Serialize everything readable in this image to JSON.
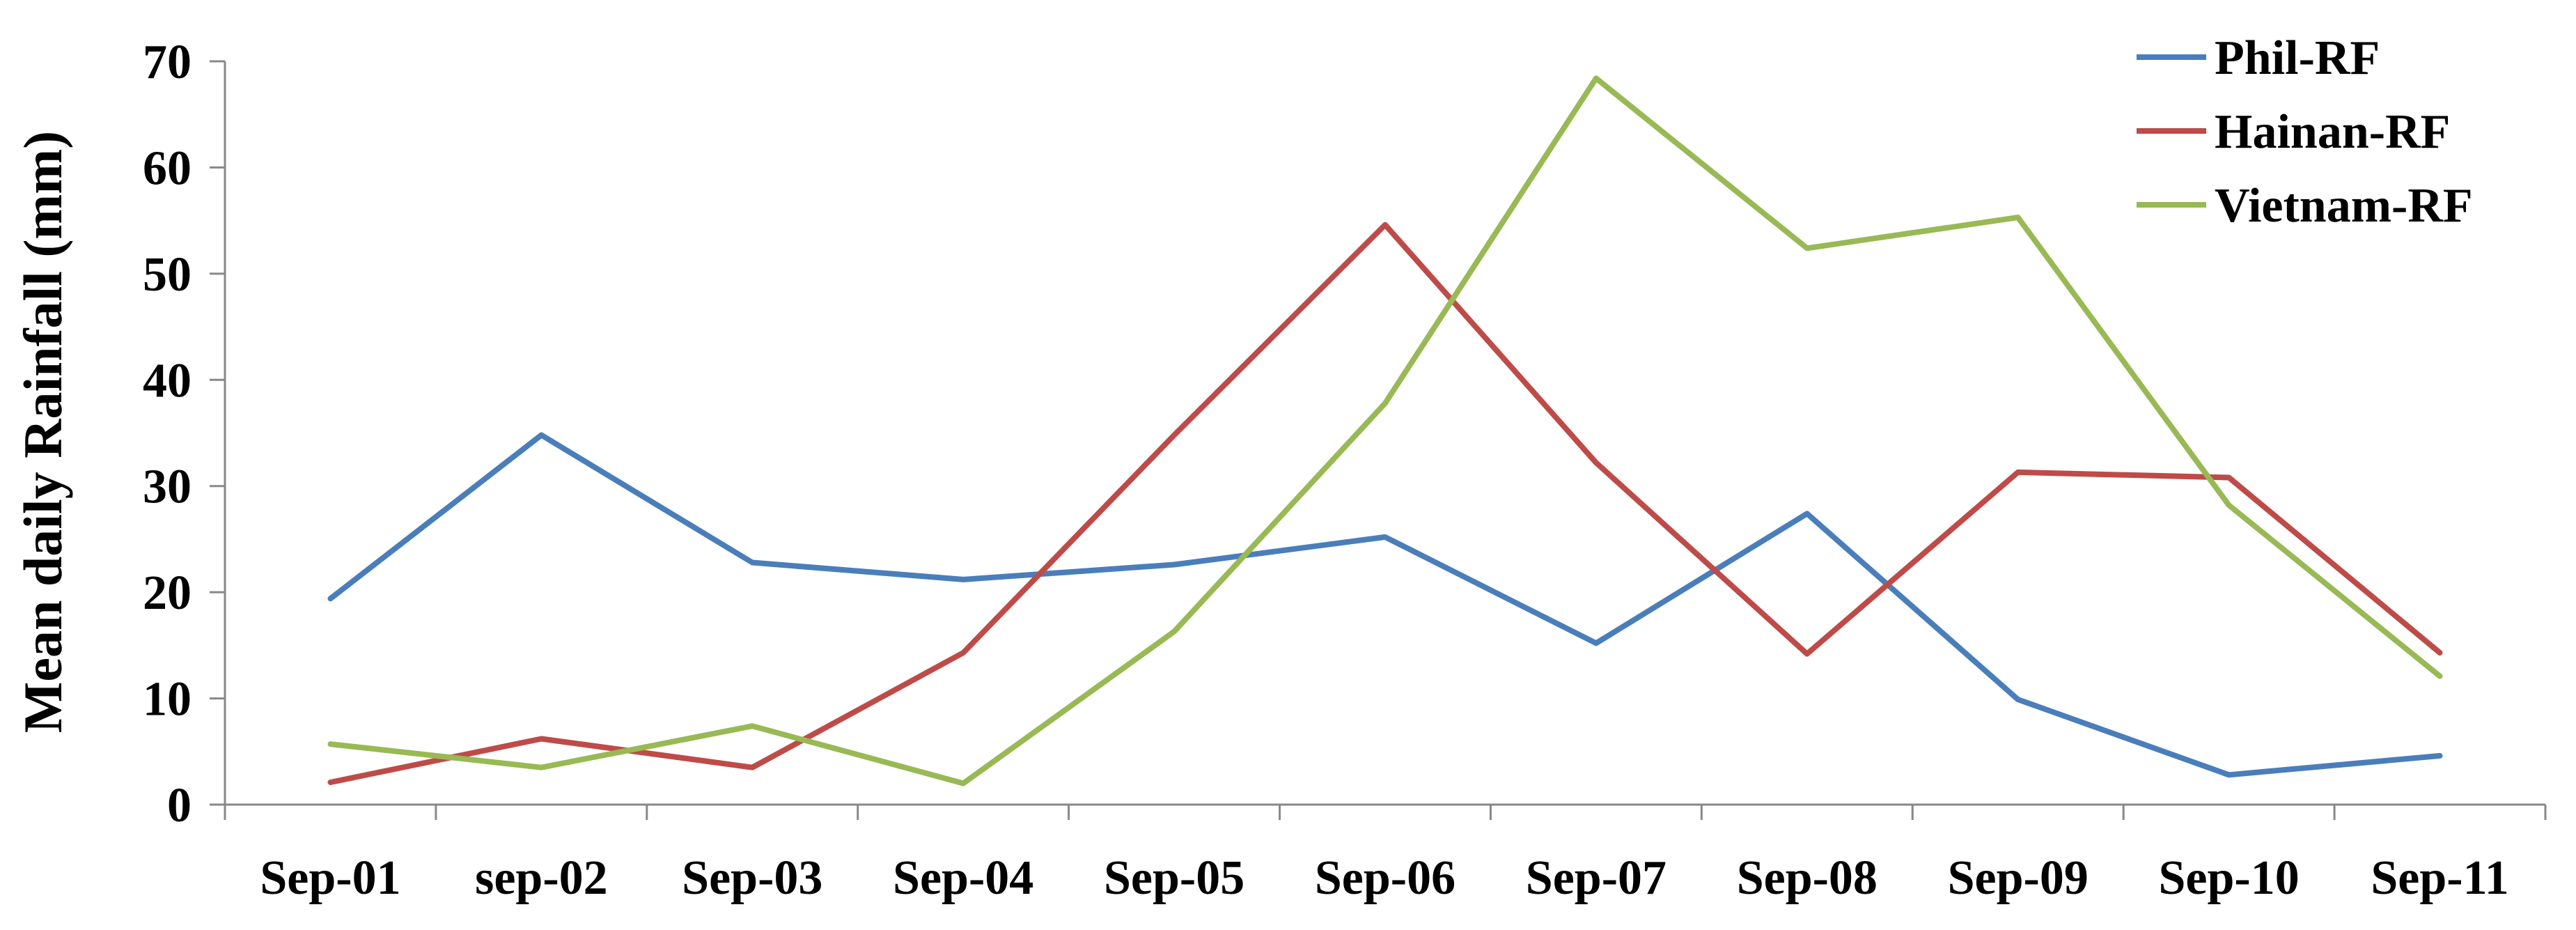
{
  "chart_data": {
    "type": "line",
    "title": "",
    "xlabel": "",
    "ylabel": "Mean daily  Rainfall (mm)",
    "ylim": [
      0,
      70
    ],
    "yticks": [
      "0",
      "10",
      "20",
      "30",
      "40",
      "50",
      "60",
      "70"
    ],
    "categories": [
      "Sep-01",
      "sep-02",
      "Sep-03",
      "Sep-04",
      "Sep-05",
      "Sep-06",
      "Sep-07",
      "Sep-08",
      "Sep-09",
      "Sep-10",
      "Sep-11"
    ],
    "grid": false,
    "legend_position": "top-right",
    "series": [
      {
        "name": "Phil-RF",
        "color": "#4a7ebb",
        "values": [
          19.4,
          34.8,
          22.8,
          21.2,
          22.6,
          25.2,
          15.2,
          27.4,
          9.9,
          2.8,
          4.6
        ]
      },
      {
        "name": "Hainan-RF",
        "color": "#be4b48",
        "values": [
          2.1,
          6.2,
          3.5,
          14.3,
          34.8,
          54.6,
          32.2,
          14.2,
          31.3,
          30.8,
          14.3
        ]
      },
      {
        "name": "Vietnam-RF",
        "color": "#98b954",
        "values": [
          5.7,
          3.5,
          7.4,
          2.0,
          16.3,
          37.8,
          68.4,
          52.4,
          55.3,
          28.2,
          12.1
        ]
      }
    ]
  }
}
